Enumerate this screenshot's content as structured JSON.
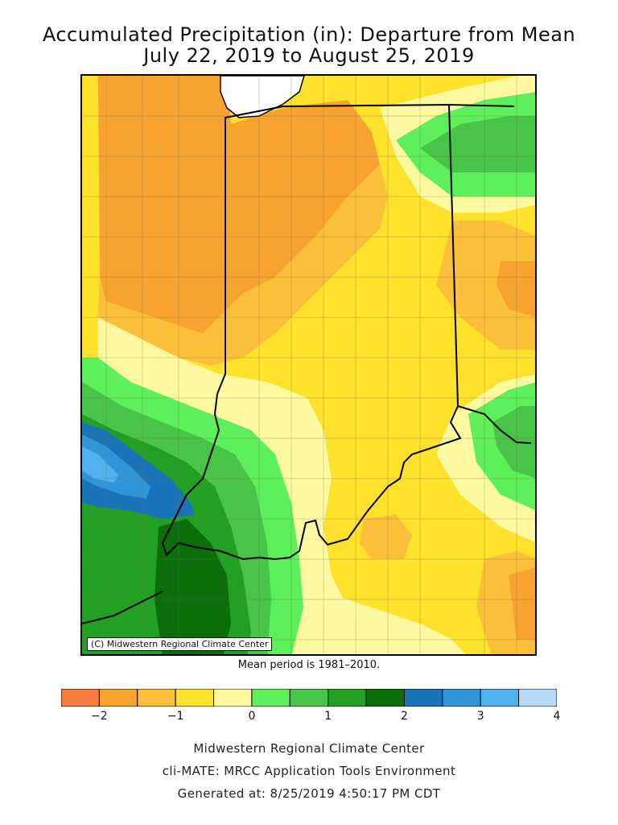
{
  "title_line1": "Accumulated Precipitation (in): Departure from Mean",
  "title_line2": "July 22, 2019 to August 25, 2019",
  "copyright": "(C) Midwestern Regional Climate Center",
  "mean_period": "Mean period is 1981–2010.",
  "legend": {
    "bins": [
      "#f97b3e",
      "#f8a330",
      "#fbbf3a",
      "#fde12b",
      "#fdf9a0",
      "#5ef05a",
      "#48c448",
      "#22a023",
      "#0a6e0a",
      "#1a74b8",
      "#3096d7",
      "#4fb2ec",
      "#b8dcf7"
    ],
    "ticks": [
      {
        "label": "−2",
        "value": -2
      },
      {
        "label": "−1",
        "value": -1
      },
      {
        "label": "0",
        "value": 0
      },
      {
        "label": "1",
        "value": 1
      },
      {
        "label": "2",
        "value": 2
      },
      {
        "label": "3",
        "value": 3
      },
      {
        "label": "4",
        "value": 4
      }
    ],
    "min": -2.5,
    "max": 4
  },
  "footer": {
    "line1": "Midwestern Regional Climate Center",
    "line2": "cli-MATE: MRCC Application Tools Environment",
    "line3": "Generated at: 8/25/2019 4:50:17 PM CDT"
  }
}
